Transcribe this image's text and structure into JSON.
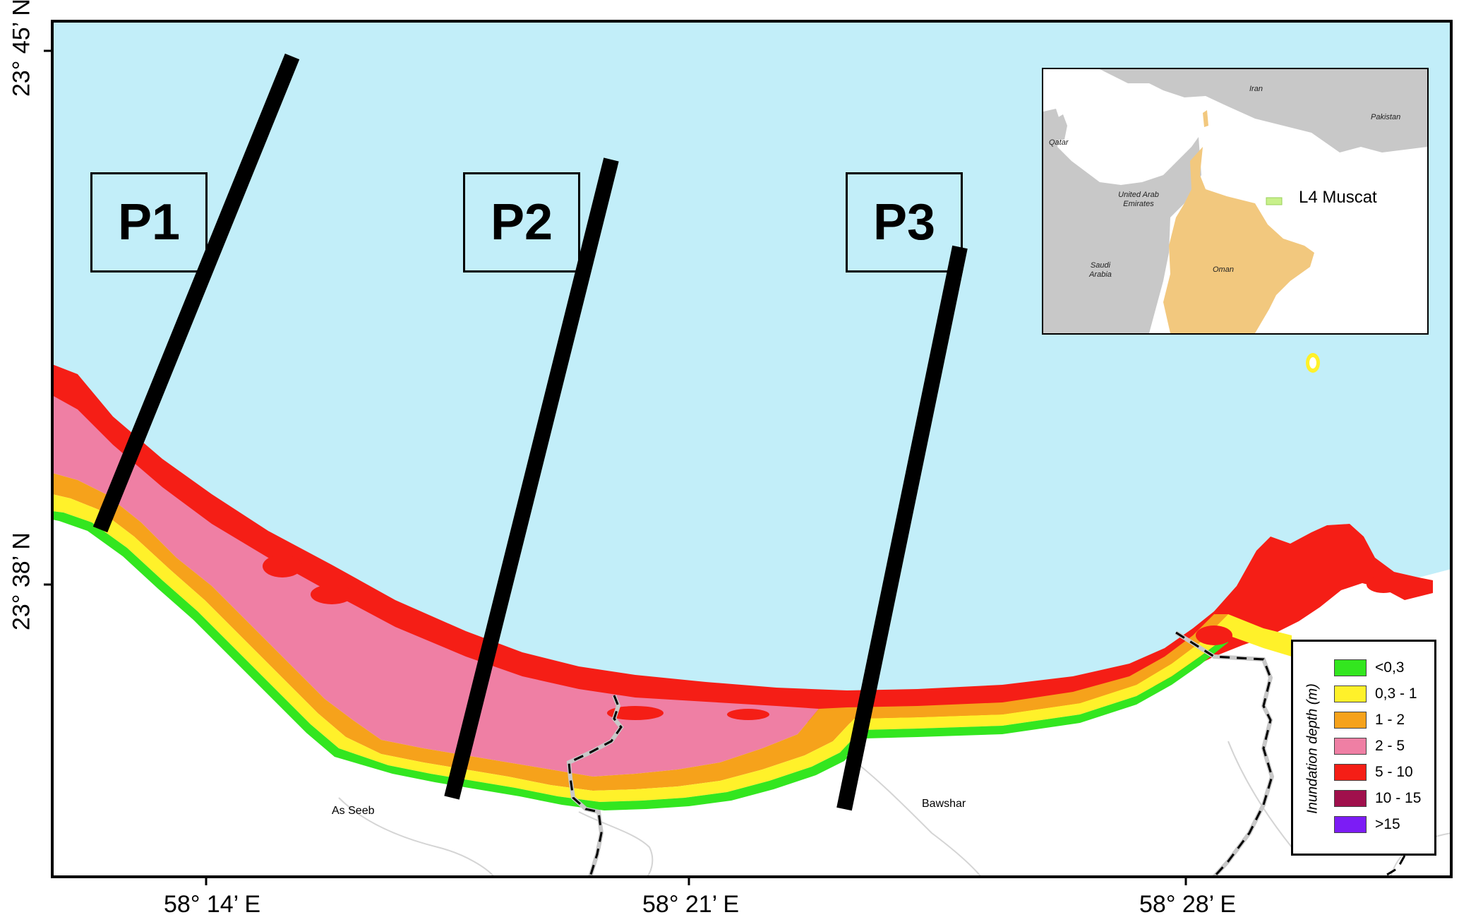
{
  "map": {
    "latitude_labels": [
      "23° 45’ N",
      "23° 38’ N"
    ],
    "longitude_labels": [
      "58° 14’ E",
      "58° 21’ E",
      "58° 28’ E"
    ],
    "profiles": [
      "P1",
      "P2",
      "P3"
    ],
    "places": [
      "As Seeb",
      "Bawshar"
    ],
    "colors": {
      "sea": "#c2eef9",
      "land": "#ffffff",
      "profile_line": "#000000",
      "district_line": "#c8c8c8"
    }
  },
  "inset": {
    "title": "L4 Muscat",
    "countries": [
      "Iran",
      "Pakistan",
      "Qatar",
      "United Arab Emirates",
      "Saudi Arabia",
      "Oman"
    ],
    "colors": {
      "land": "#c8c8c8",
      "oman": "#f2c87e",
      "sea": "#ffffff",
      "marker": "#c8f08a"
    }
  },
  "legend": {
    "title": "Inundation depth (m)",
    "items": [
      {
        "label": "<0,3",
        "color": "#33e61f"
      },
      {
        "label": "0,3 - 1",
        "color": "#fff12a"
      },
      {
        "label": "1 - 2",
        "color": "#f6a21b"
      },
      {
        "label": "2 - 5",
        "color": "#ef7fa4"
      },
      {
        "label": "5 - 10",
        "color": "#f51e16"
      },
      {
        "label": "10 - 15",
        "color": "#a0104c"
      },
      {
        "label": ">15",
        "color": "#7c1cf5"
      }
    ]
  }
}
